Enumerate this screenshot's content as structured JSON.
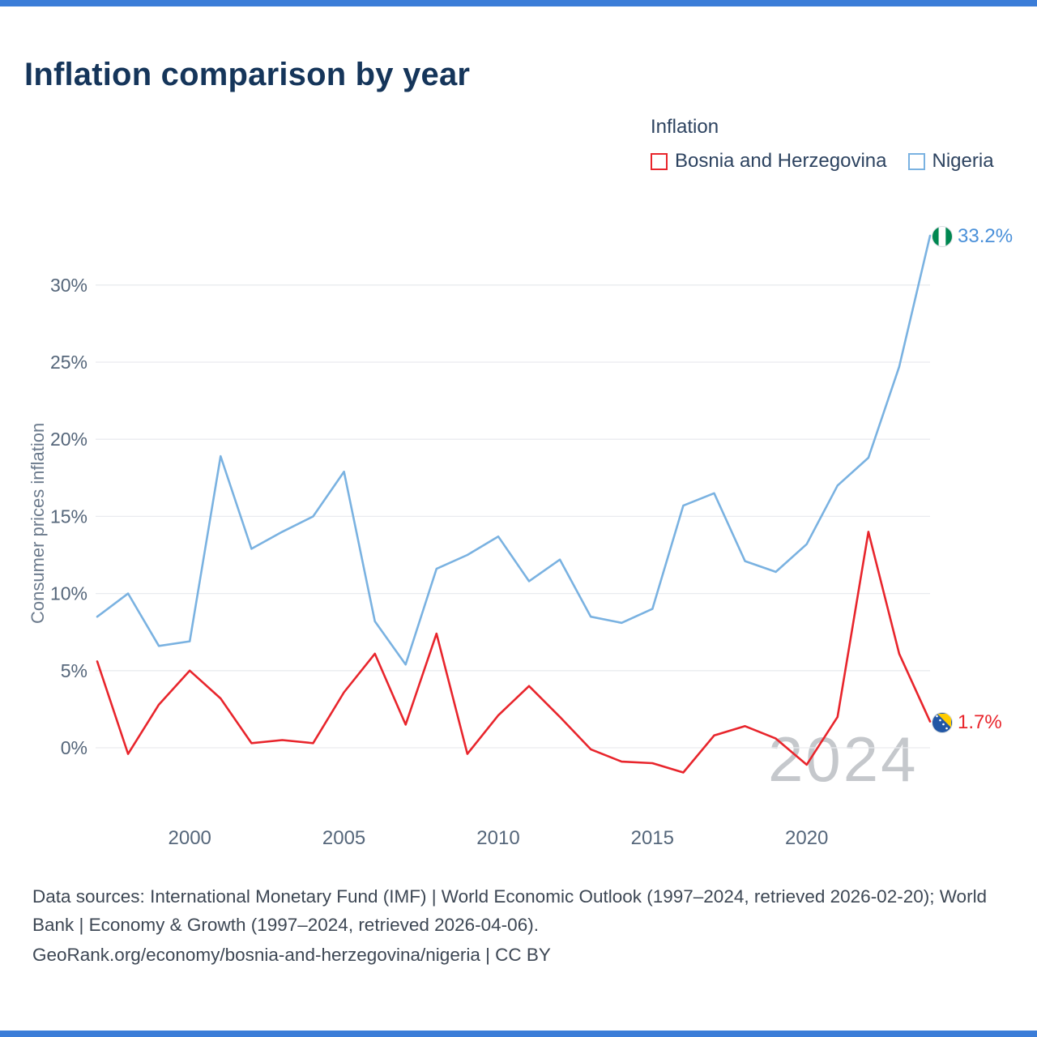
{
  "accent_color": "#3b7dd8",
  "title": "Inflation comparison by year",
  "legend": {
    "title": "Inflation",
    "items": [
      {
        "label": "Bosnia and Herzegovina",
        "color": "#e8252c"
      },
      {
        "label": "Nigeria",
        "color": "#7ab2e1"
      }
    ]
  },
  "watermark": "2024",
  "footer": {
    "line1": "Data sources: International Monetary Fund (IMF) | World Economic Outlook (1997–2024, retrieved 2026-02-20); World Bank | Economy & Growth (1997–2024, retrieved 2026-04-06).",
    "line2": "GeoRank.org/economy/bosnia-and-herzegovina/nigeria | CC BY"
  },
  "chart_data": {
    "type": "line",
    "title": "Inflation comparison by year",
    "xlabel": "",
    "ylabel": "Consumer prices inflation",
    "grid": "horizontal",
    "legend_position": "top-right",
    "ylim": [
      -3,
      34.5
    ],
    "x": [
      1997,
      1998,
      1999,
      2000,
      2001,
      2002,
      2003,
      2004,
      2005,
      2006,
      2007,
      2008,
      2009,
      2010,
      2011,
      2012,
      2013,
      2014,
      2015,
      2016,
      2017,
      2018,
      2019,
      2020,
      2021,
      2022,
      2023,
      2024
    ],
    "xticks": [
      2000,
      2005,
      2010,
      2015,
      2020
    ],
    "yticks": [
      0,
      5,
      10,
      15,
      20,
      25,
      30
    ],
    "ytick_labels": [
      "0%",
      "5%",
      "10%",
      "15%",
      "20%",
      "25%",
      "30%"
    ],
    "series": [
      {
        "name": "Bosnia and Herzegovina",
        "color": "#e8252c",
        "values": [
          5.6,
          -0.4,
          2.8,
          5.0,
          3.2,
          0.3,
          0.5,
          0.3,
          3.6,
          6.1,
          1.5,
          7.4,
          -0.4,
          2.1,
          4.0,
          2.0,
          -0.1,
          -0.9,
          -1.0,
          -1.6,
          0.8,
          1.4,
          0.6,
          -1.1,
          2.0,
          14.0,
          6.1,
          1.7
        ]
      },
      {
        "name": "Nigeria",
        "color": "#7ab2e1",
        "values": [
          8.5,
          10.0,
          6.6,
          6.9,
          18.9,
          12.9,
          14.0,
          15.0,
          17.9,
          8.2,
          5.4,
          11.6,
          12.5,
          13.7,
          10.8,
          12.2,
          8.5,
          8.1,
          9.0,
          15.7,
          16.5,
          12.1,
          11.4,
          13.2,
          17.0,
          18.8,
          24.7,
          33.2
        ]
      }
    ],
    "end_labels": [
      {
        "series": "Nigeria",
        "text": "33.2%",
        "color": "#4a90d9"
      },
      {
        "series": "Bosnia and Herzegovina",
        "text": "1.7%",
        "color": "#e8252c"
      }
    ]
  }
}
